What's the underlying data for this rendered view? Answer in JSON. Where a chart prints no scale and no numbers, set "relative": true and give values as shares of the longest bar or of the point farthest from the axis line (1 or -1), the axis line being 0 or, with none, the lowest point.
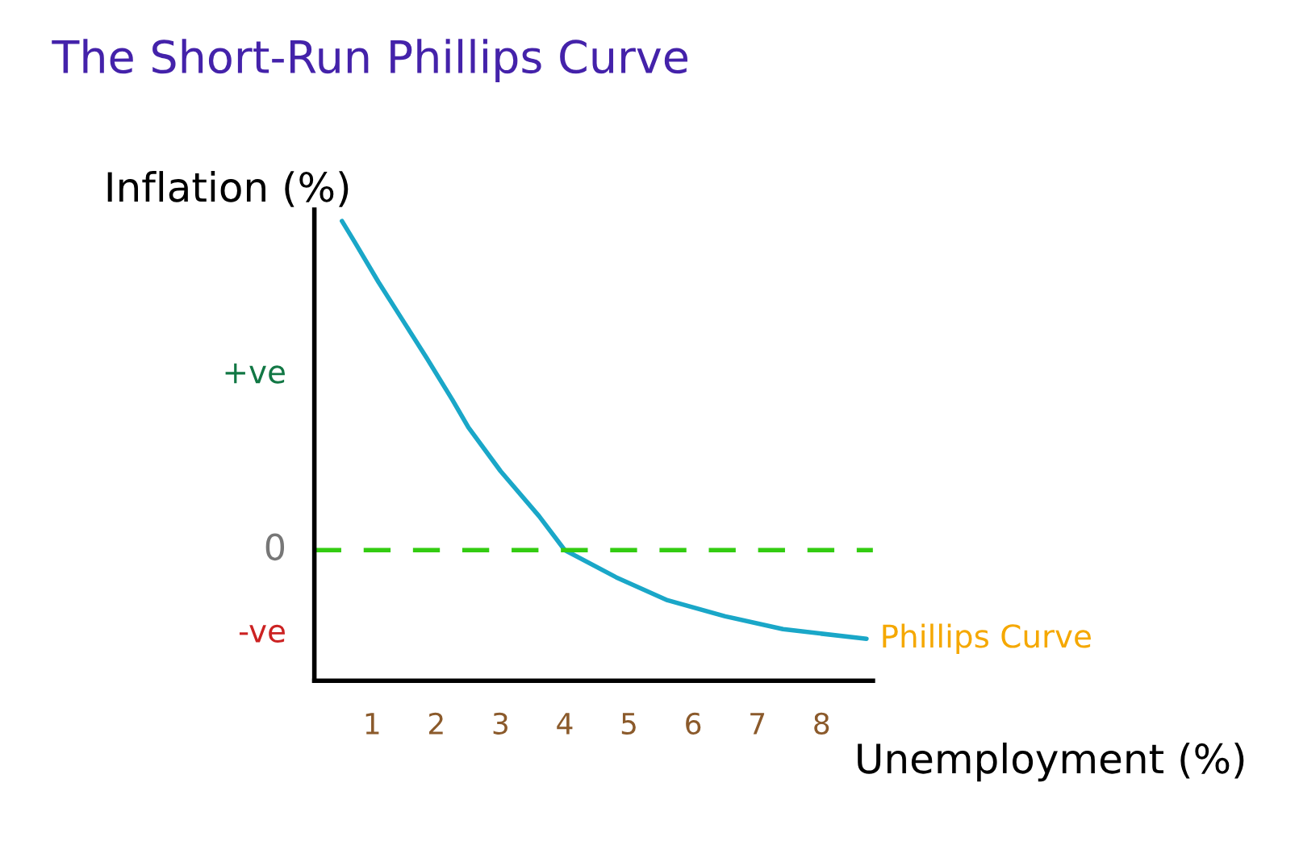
{
  "chart_data": {
    "type": "line",
    "title": "The Short-Run Phillips Curve",
    "xlabel": "Unemployment (%)",
    "ylabel": "Inflation (%)",
    "xlim": [
      0.1,
      8.8
    ],
    "xticks": [
      1,
      2,
      3,
      4,
      5,
      6,
      7,
      8
    ],
    "relative": true,
    "series": [
      {
        "name": "Phillips Curve",
        "color": "#1aa7c8",
        "x": [
          0.53,
          0.73,
          1.1,
          1.5,
          1.85,
          2.25,
          2.5,
          3.0,
          3.6,
          4.0,
          4.8,
          5.6,
          6.5,
          7.4,
          8.7
        ],
        "values": [
          1.0,
          0.954,
          0.867,
          0.779,
          0.702,
          0.611,
          0.551,
          0.456,
          0.358,
          0.284,
          0.225,
          0.175,
          0.14,
          0.112,
          0.091
        ]
      }
    ],
    "ref_lines": [
      {
        "axis": "y",
        "value": 0.284,
        "label": "0",
        "color": "#33cc11",
        "line_style": "dashed"
      }
    ],
    "annotations": [
      "-ve",
      "+ve"
    ],
    "grid": false,
    "legend": false,
    "marker": "none",
    "line_style": "solid"
  }
}
